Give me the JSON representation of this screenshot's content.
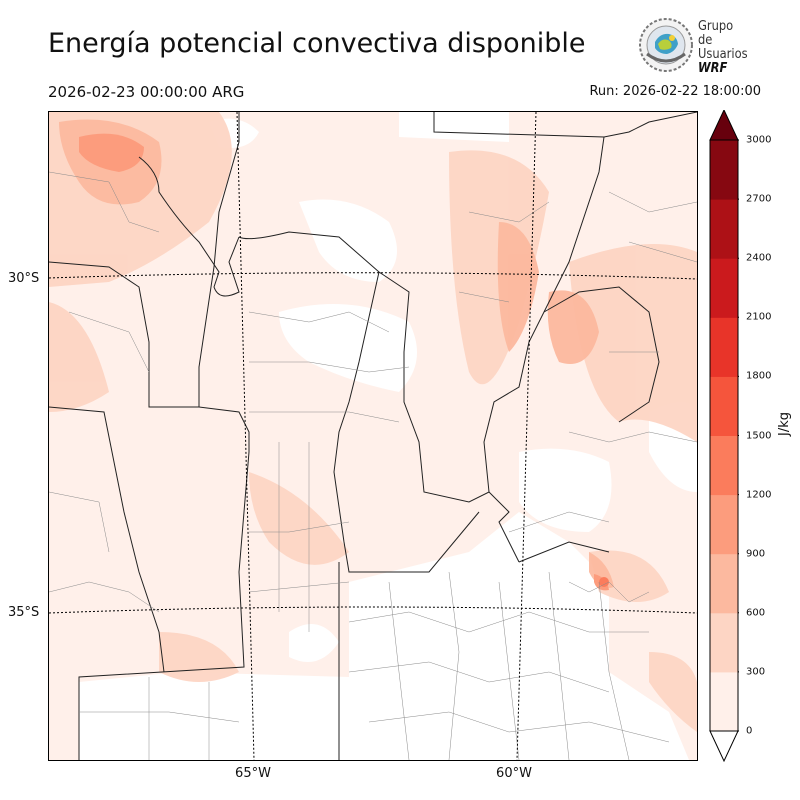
{
  "header": {
    "title": "Energía potencial convectiva disponible",
    "valid_time": "2026-02-23 00:00:00 ARG",
    "run_time": "Run: 2026-02-22 18:00:00"
  },
  "logo": {
    "line1": "Grupo de",
    "line2": "Usuarios",
    "line3": "WRF"
  },
  "map": {
    "lat_labels": [
      "30°S",
      "35°S"
    ],
    "lon_labels": [
      "65°W",
      "60°W"
    ]
  },
  "colorbar": {
    "unit": "J/kg",
    "ticks": [
      "0",
      "300",
      "600",
      "900",
      "1200",
      "1500",
      "1800",
      "2100",
      "2400",
      "2700",
      "3000"
    ],
    "colors": [
      "#fff0ea",
      "#fdd5c4",
      "#fcb99f",
      "#fc9c7d",
      "#fb7c5c",
      "#f5553c",
      "#e83429",
      "#cb1a1d",
      "#ad1116",
      "#860811"
    ],
    "over_color": "#67000d",
    "under_color": "#ffffff"
  }
}
